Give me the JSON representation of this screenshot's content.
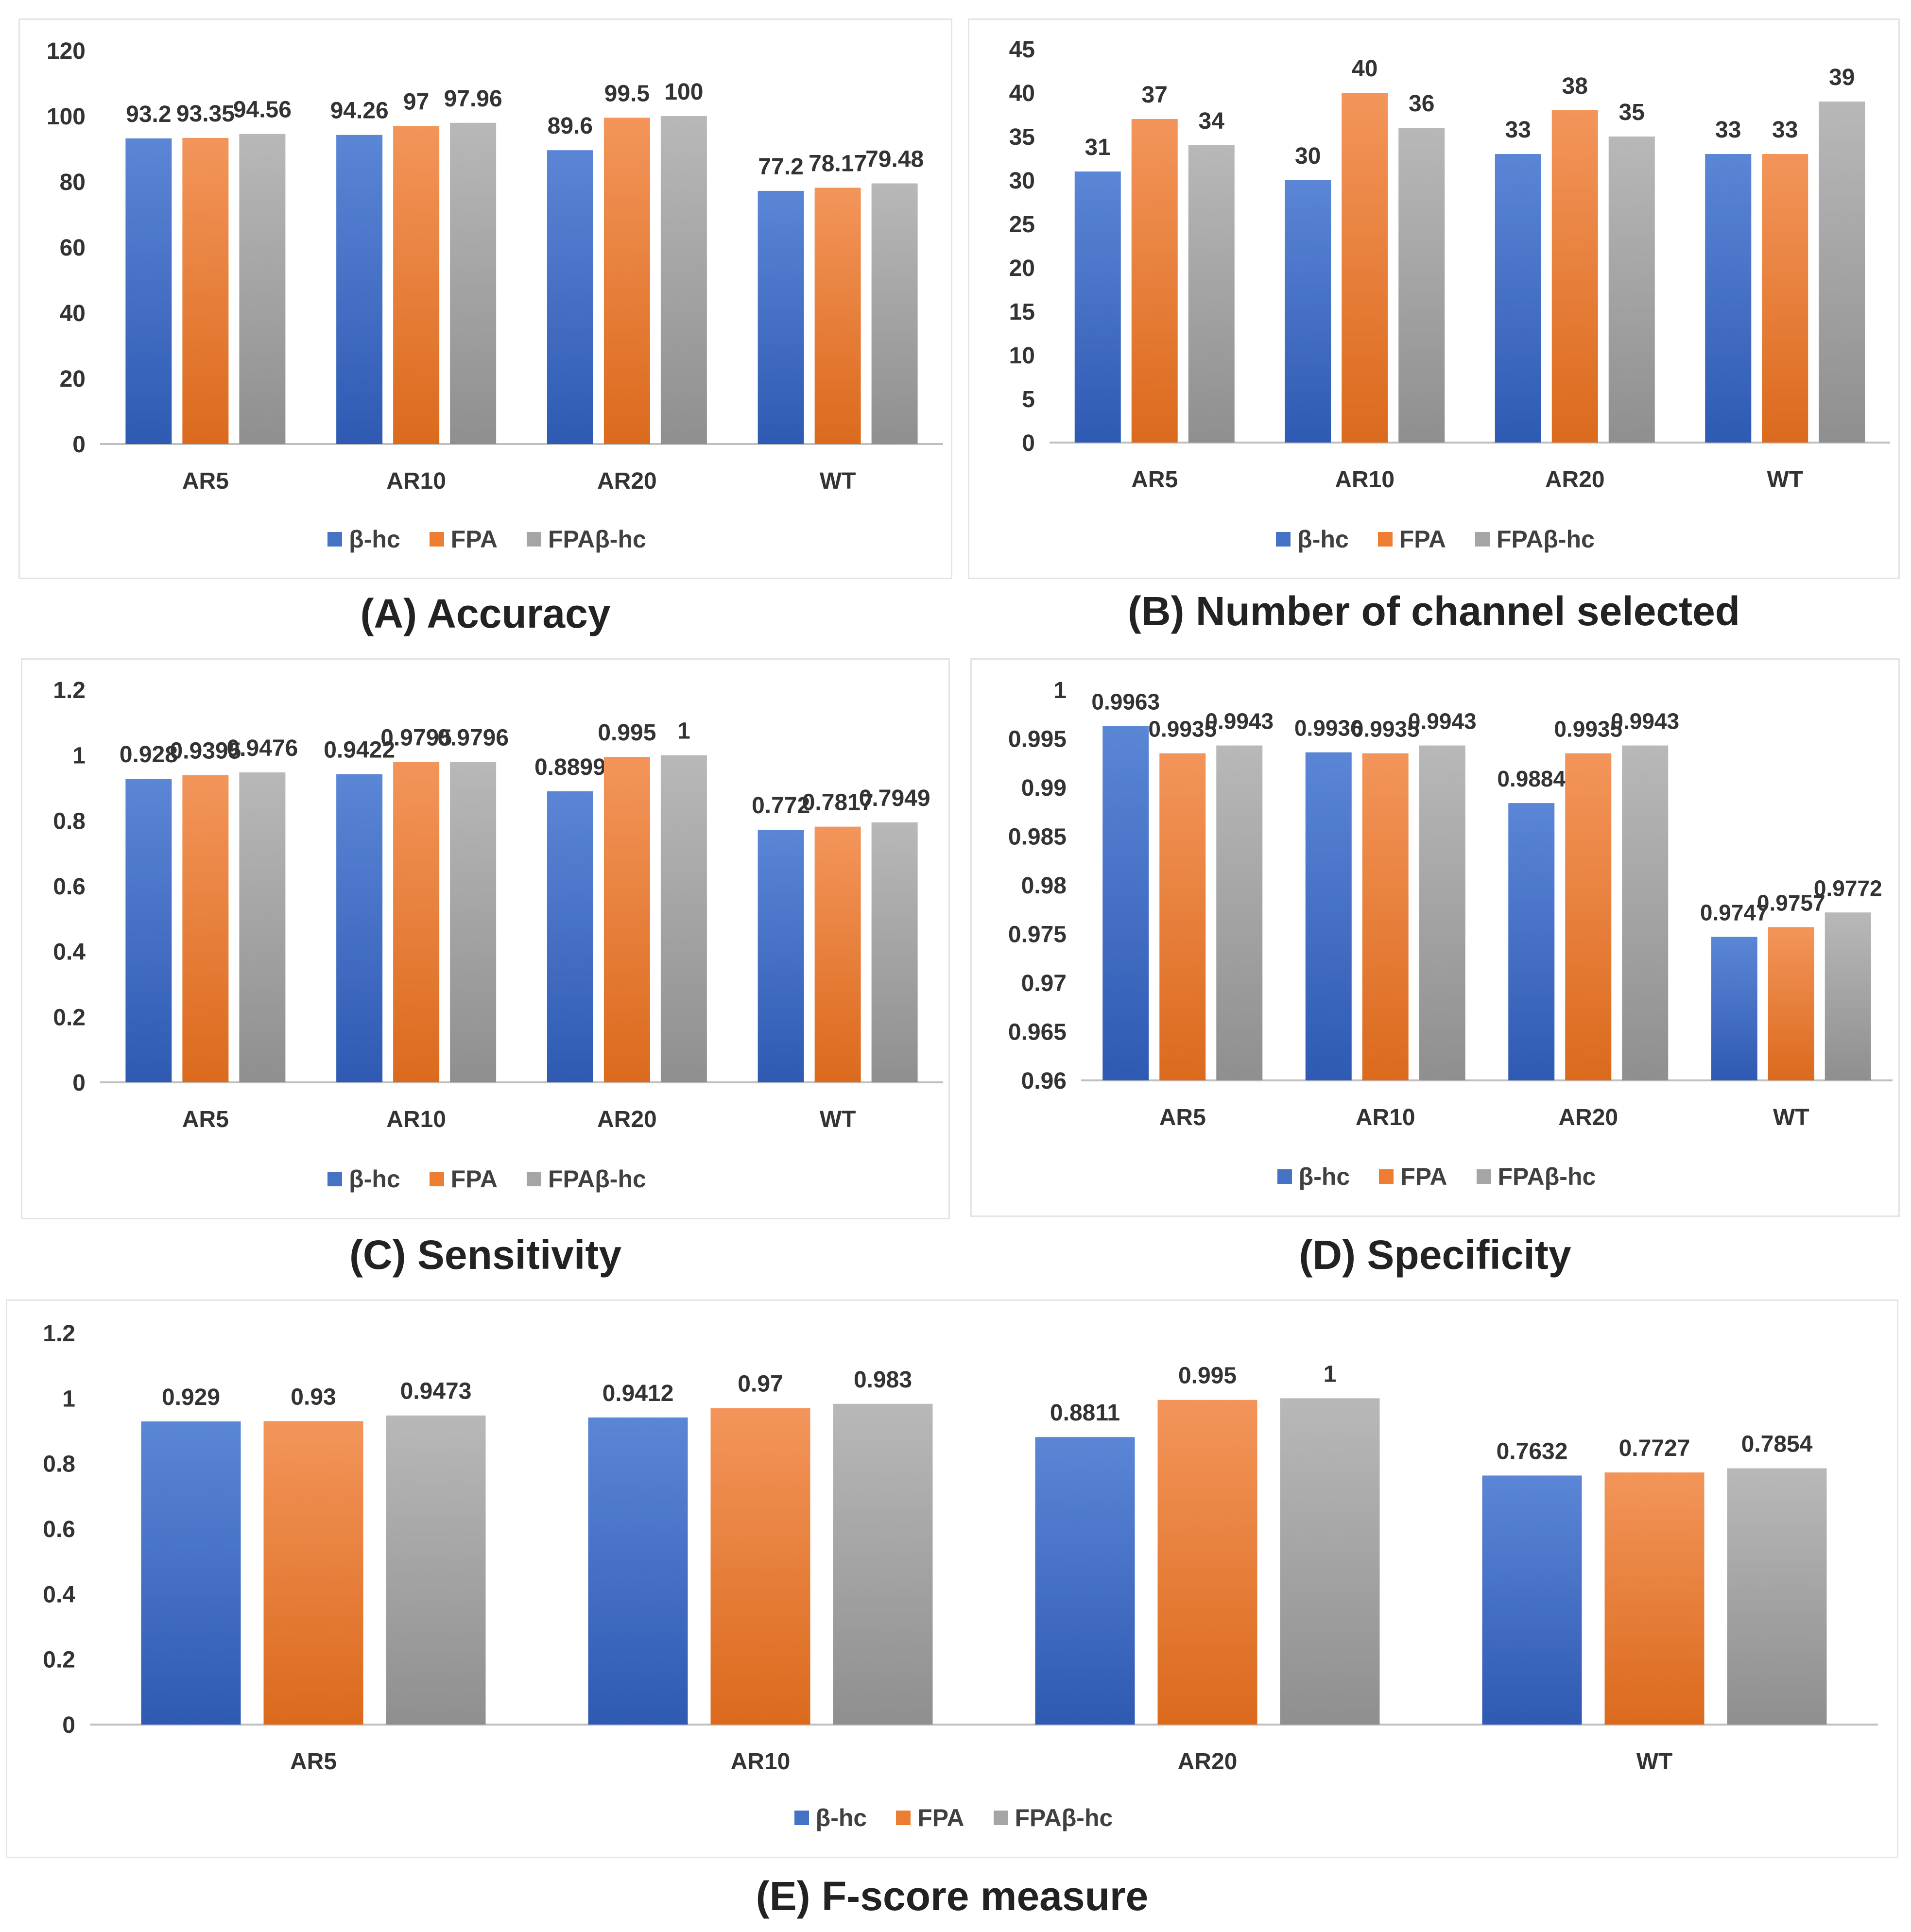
{
  "legend": {
    "series": [
      {
        "name": "β-hc",
        "color": "#4472c4"
      },
      {
        "name": "FPA",
        "color": "#ed7d31"
      },
      {
        "name": "FPAβ-hc",
        "color": "#a5a5a5"
      }
    ]
  },
  "captions": {
    "a": "(A) Accuracy",
    "b": "(B) Number of channel selected",
    "c": "(C) Sensitivity",
    "d": "(D) Specificity",
    "e": "(E) F-score measure"
  },
  "chart_data": [
    {
      "id": "a",
      "type": "bar",
      "title": "(A) Accuracy",
      "categories": [
        "AR5",
        "AR10",
        "AR20",
        "WT"
      ],
      "ylim": [
        0,
        120
      ],
      "yticks": [
        "0",
        "20",
        "40",
        "60",
        "80",
        "100",
        "120"
      ],
      "series": [
        {
          "name": "β-hc",
          "values": [
            93.2,
            94.26,
            89.6,
            77.2
          ],
          "labels": [
            "93.2",
            "94.26",
            "89.6",
            "77.2"
          ]
        },
        {
          "name": "FPA",
          "values": [
            93.35,
            97,
            99.5,
            78.17
          ],
          "labels": [
            "93.35",
            "97",
            "99.5",
            "78.17"
          ]
        },
        {
          "name": "FPAβ-hc",
          "values": [
            94.56,
            97.96,
            100,
            79.48
          ],
          "labels": [
            "94.56",
            "97.96",
            "100",
            "79.48"
          ]
        }
      ]
    },
    {
      "id": "b",
      "type": "bar",
      "title": "(B) Number of channel selected",
      "categories": [
        "AR5",
        "AR10",
        "AR20",
        "WT"
      ],
      "ylim": [
        0,
        45
      ],
      "yticks": [
        "0",
        "5",
        "10",
        "15",
        "20",
        "25",
        "30",
        "35",
        "40",
        "45"
      ],
      "series": [
        {
          "name": "β-hc",
          "values": [
            31,
            30,
            33,
            33
          ],
          "labels": [
            "31",
            "30",
            "33",
            "33"
          ]
        },
        {
          "name": "FPA",
          "values": [
            37,
            40,
            38,
            33
          ],
          "labels": [
            "37",
            "40",
            "38",
            "33"
          ]
        },
        {
          "name": "FPAβ-hc",
          "values": [
            34,
            36,
            35,
            39
          ],
          "labels": [
            "34",
            "36",
            "35",
            "39"
          ]
        }
      ]
    },
    {
      "id": "c",
      "type": "bar",
      "title": "(C) Sensitivity",
      "categories": [
        "AR5",
        "AR10",
        "AR20",
        "WT"
      ],
      "ylim": [
        0,
        1.2
      ],
      "yticks": [
        "0",
        "0.2",
        "0.4",
        "0.6",
        "0.8",
        "1",
        "1.2"
      ],
      "series": [
        {
          "name": "β-hc",
          "values": [
            0.928,
            0.9422,
            0.8899,
            0.772
          ],
          "labels": [
            "0.928",
            "0.9422",
            "0.8899",
            "0.772"
          ]
        },
        {
          "name": "FPA",
          "values": [
            0.9395,
            0.9795,
            0.995,
            0.7817
          ],
          "labels": [
            "0.9395",
            "0.9795",
            "0.995",
            "0.7817"
          ]
        },
        {
          "name": "FPAβ-hc",
          "values": [
            0.9476,
            0.9796,
            1,
            0.7949
          ],
          "labels": [
            "0.9476",
            "0.9796",
            "1",
            "0.7949"
          ]
        }
      ]
    },
    {
      "id": "d",
      "type": "bar",
      "title": "(D) Specificity",
      "categories": [
        "AR5",
        "AR10",
        "AR20",
        "WT"
      ],
      "ylim": [
        0.96,
        1
      ],
      "yticks": [
        "0.96",
        "0.965",
        "0.97",
        "0.975",
        "0.98",
        "0.985",
        "0.99",
        "0.995",
        "1"
      ],
      "series": [
        {
          "name": "β-hc",
          "values": [
            0.9963,
            0.9936,
            0.9884,
            0.9747
          ],
          "labels": [
            "0.9963",
            "0.9936",
            "0.9884",
            "0.9747"
          ]
        },
        {
          "name": "FPA",
          "values": [
            0.9935,
            0.9935,
            0.9935,
            0.9757
          ],
          "labels": [
            "0.9935",
            "0.9935",
            "0.9935",
            "0.9757"
          ]
        },
        {
          "name": "FPAβ-hc",
          "values": [
            0.9943,
            0.9943,
            0.9943,
            0.9772
          ],
          "labels": [
            "0.9943",
            "0.9943",
            "0.9943",
            "0.9772"
          ]
        }
      ]
    },
    {
      "id": "e",
      "type": "bar",
      "title": "(E) F-score measure",
      "categories": [
        "AR5",
        "AR10",
        "AR20",
        "WT"
      ],
      "ylim": [
        0,
        1.2
      ],
      "yticks": [
        "0",
        "0.2",
        "0.4",
        "0.6",
        "0.8",
        "1",
        "1.2"
      ],
      "series": [
        {
          "name": "β-hc",
          "values": [
            0.929,
            0.9412,
            0.8811,
            0.7632
          ],
          "labels": [
            "0.929",
            "0.9412",
            "0.8811",
            "0.7632"
          ]
        },
        {
          "name": "FPA",
          "values": [
            0.93,
            0.97,
            0.995,
            0.7727
          ],
          "labels": [
            "0.93",
            "0.97",
            "0.995",
            "0.7727"
          ]
        },
        {
          "name": "FPAβ-hc",
          "values": [
            0.9473,
            0.983,
            1,
            0.7854
          ],
          "labels": [
            "0.9473",
            "0.983",
            "1",
            "0.7854"
          ]
        }
      ]
    }
  ]
}
